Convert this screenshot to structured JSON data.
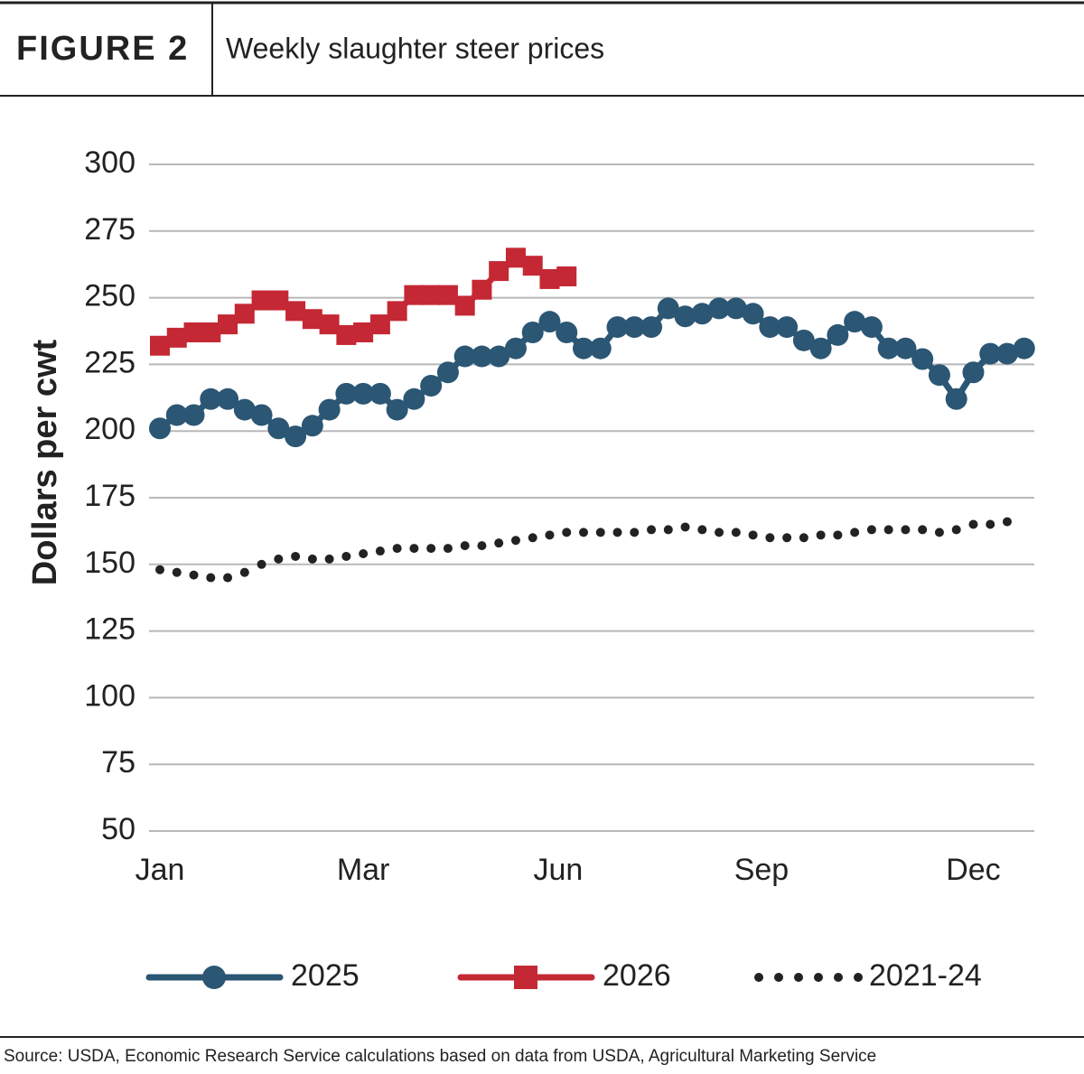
{
  "chart_data": {
    "type": "line",
    "figure_label": "FIGURE 2",
    "title": "Weekly slaughter steer prices",
    "ylabel": "Dollars per cwt",
    "source": "Source: USDA, Economic Research Service calculations based on data from USDA, Agricultural Marketing Service",
    "xlim": [
      -0.64,
      51.6
    ],
    "xticks": [
      {
        "value": 0,
        "label": "Jan"
      },
      {
        "value": 12,
        "label": "Mar"
      },
      {
        "value": 23.5,
        "label": "Jun"
      },
      {
        "value": 35.5,
        "label": "Sep"
      },
      {
        "value": 48,
        "label": "Dec"
      }
    ],
    "ylim": [
      50,
      300
    ],
    "yticks": [
      50,
      75,
      100,
      125,
      150,
      175,
      200,
      225,
      250,
      275,
      300
    ],
    "grid": true,
    "series": [
      {
        "name": "2025",
        "color": "#2b5674",
        "marker": "circle",
        "values": [
          201,
          206,
          206,
          212,
          212,
          208,
          206,
          201,
          198,
          202,
          208,
          214,
          214,
          214,
          208,
          212,
          217,
          222,
          228,
          228,
          228,
          231,
          237,
          241,
          237,
          231,
          231,
          239,
          239,
          239,
          246,
          243,
          244,
          246,
          246,
          244,
          239,
          239,
          234,
          231,
          236,
          241,
          239,
          231,
          231,
          227,
          221,
          212,
          222,
          229,
          229,
          231
        ]
      },
      {
        "name": "2026",
        "color": "#c42834",
        "marker": "square",
        "values": [
          232,
          235,
          237,
          237,
          240,
          244,
          249,
          249,
          245,
          242,
          240,
          236,
          237,
          240,
          245,
          251,
          251,
          251,
          247,
          253,
          260,
          265,
          262,
          257,
          258
        ]
      },
      {
        "name": "2021-24",
        "color": "#222222",
        "marker": "dot",
        "values": [
          148,
          147,
          146,
          145,
          145,
          147,
          150,
          152,
          153,
          152,
          152,
          153,
          154,
          155,
          156,
          156,
          156,
          156,
          157,
          157,
          158,
          159,
          160,
          161,
          162,
          162,
          162,
          162,
          162,
          163,
          163,
          164,
          163,
          162,
          162,
          161,
          160,
          160,
          160,
          161,
          161,
          162,
          163,
          163,
          163,
          163,
          162,
          163,
          165,
          165,
          166,
          null
        ]
      }
    ]
  }
}
